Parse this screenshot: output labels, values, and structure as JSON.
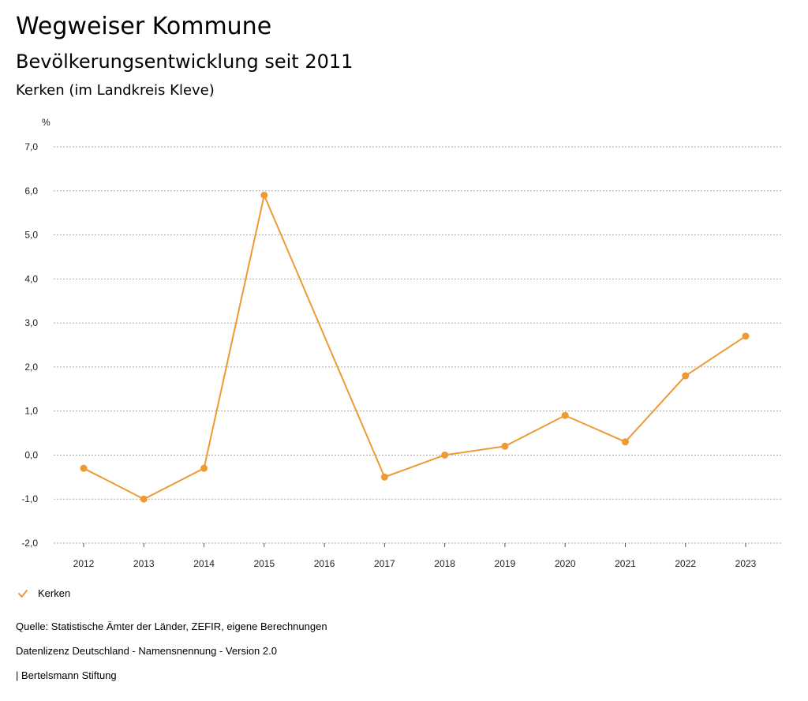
{
  "header": {
    "title": "Wegweiser Kommune",
    "subtitle": "Bevölkerungsentwicklung seit 2011",
    "place": "Kerken (im Landkreis Kleve)"
  },
  "chart_data": {
    "type": "line",
    "title": "Bevölkerungsentwicklung seit 2011",
    "ylabel": "%",
    "xlabel": "",
    "ylim": [
      -2.0,
      7.0
    ],
    "y_ticks": [
      "7,0",
      "6,0",
      "5,0",
      "4,0",
      "3,0",
      "2,0",
      "1,0",
      "0,0",
      "-1,0",
      "-2,0"
    ],
    "y_tick_values": [
      7,
      6,
      5,
      4,
      3,
      2,
      1,
      0,
      -1,
      -2
    ],
    "categories": [
      "2012",
      "2013",
      "2014",
      "2015",
      "2016",
      "2017",
      "2018",
      "2019",
      "2020",
      "2021",
      "2022",
      "2023"
    ],
    "series": [
      {
        "name": "Kerken",
        "color": "#ee9a33",
        "values": [
          -0.3,
          -1.0,
          -0.3,
          5.9,
          null,
          -0.5,
          0.0,
          0.2,
          0.9,
          0.3,
          1.8,
          2.7
        ]
      }
    ],
    "grid": true,
    "legend_position": "bottom-left"
  },
  "legend": {
    "label": "Kerken",
    "icon": "check-icon"
  },
  "footer": {
    "source": "Quelle: Statistische Ämter der Länder, ZEFIR, eigene Berechnungen",
    "license": "Datenlizenz Deutschland - Namensnennung - Version 2.0",
    "credit": "| Bertelsmann Stiftung"
  }
}
